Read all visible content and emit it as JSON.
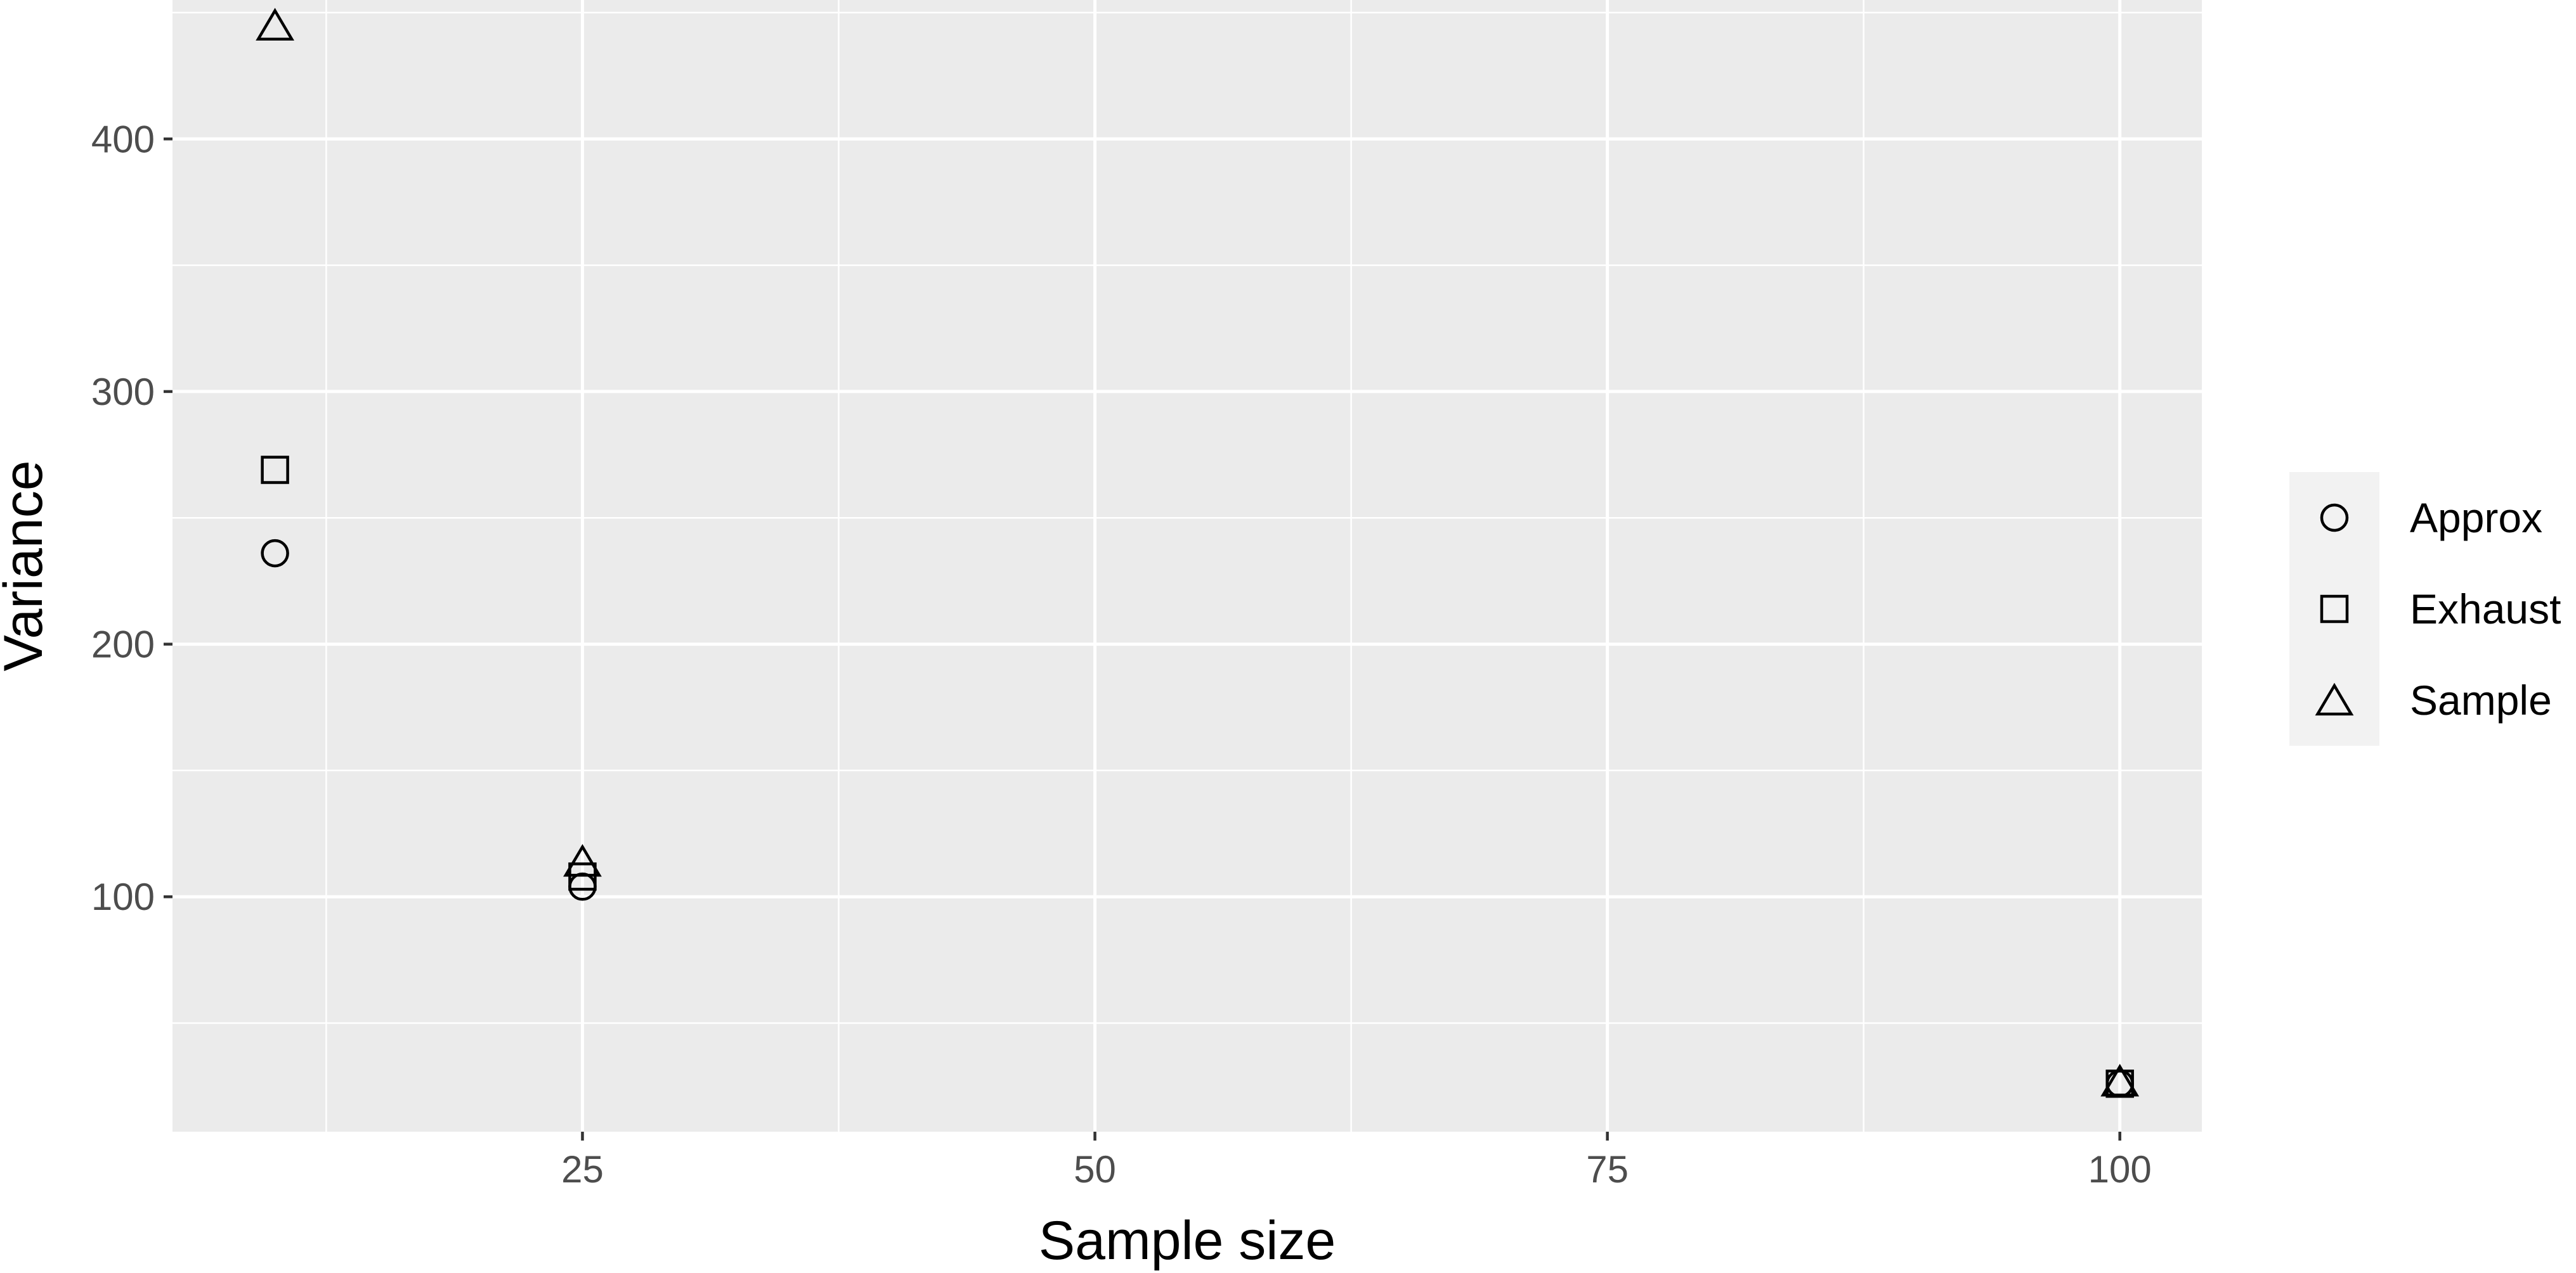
{
  "chart_data": {
    "type": "scatter",
    "title": "",
    "xlabel": "Sample size",
    "ylabel": "Variance",
    "xlim": [
      5,
      104
    ],
    "ylim": [
      7,
      455
    ],
    "x_ticks": [
      25,
      50,
      75,
      100
    ],
    "y_ticks": [
      100,
      200,
      300,
      400
    ],
    "grid": true,
    "legend_position": "right",
    "colors": {
      "panel": "#ebebeb",
      "grid": "#ffffff",
      "tick_text": "#4d4d4d",
      "marker_stroke": "#000000",
      "legend_bg": "#f2f2f2"
    },
    "series": [
      {
        "name": "Approx",
        "shape": "circle",
        "x": [
          10,
          25,
          100
        ],
        "y": [
          236,
          104,
          26
        ]
      },
      {
        "name": "Exhaust",
        "shape": "square",
        "x": [
          10,
          25,
          100
        ],
        "y": [
          269,
          108,
          26
        ]
      },
      {
        "name": "Sample",
        "shape": "triangle",
        "x": [
          10,
          25,
          100
        ],
        "y": [
          445,
          114,
          27
        ]
      }
    ]
  }
}
